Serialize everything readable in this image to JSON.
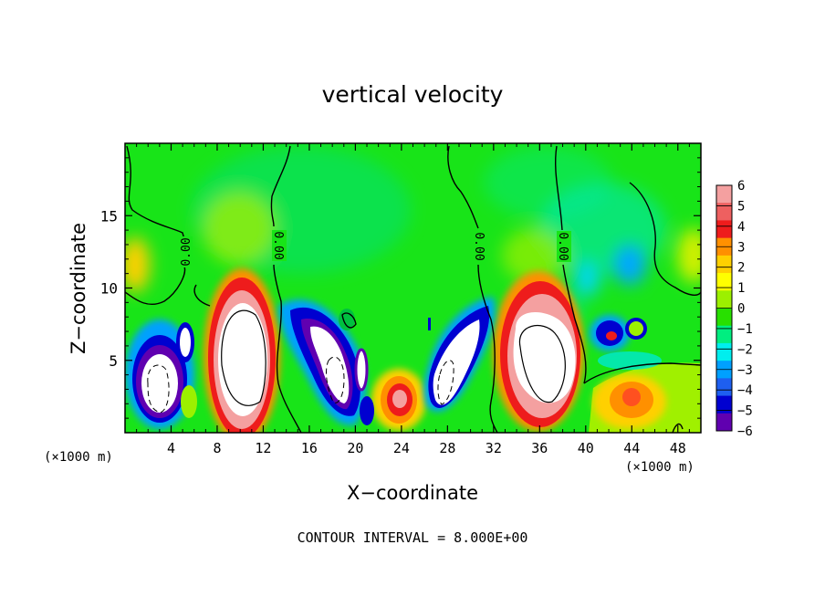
{
  "chart_data": {
    "type": "heatmap",
    "title": "vertical velocity",
    "xlabel": "X−coordinate",
    "ylabel": "Z−coordinate",
    "x_unit_left": "(×1000 m)",
    "x_unit_right": "(×1000 m)",
    "footer": "CONTOUR INTERVAL = 8.000E+00",
    "x_ticks": [
      "4",
      "8",
      "12",
      "16",
      "20",
      "24",
      "28",
      "32",
      "36",
      "40",
      "44",
      "48"
    ],
    "y_ticks": [
      "5",
      "10",
      "15"
    ],
    "xlim": [
      0,
      50
    ],
    "ylim": [
      0,
      20
    ],
    "contour_labels": [
      "0.00",
      "0.00",
      "0.00",
      "0.00"
    ],
    "colorbar": {
      "tick_labels": [
        "6",
        "5",
        "4",
        "3",
        "2",
        "1",
        "0",
        "−1",
        "−2",
        "−3",
        "−4",
        "−5",
        "−6"
      ],
      "range": [
        -6,
        6
      ],
      "colors": [
        "#f4a0a0",
        "#ee6060",
        "#ee1c1c",
        "#ff9000",
        "#ffd000",
        "#ffff00",
        "#9cf000",
        "#28e000",
        "#00ee80",
        "#00eeee",
        "#00a0ff",
        "#1e5ff0",
        "#0000d0",
        "#6000b0"
      ]
    },
    "features": [
      {
        "kind": "updraft",
        "x": 10.5,
        "z": 5.5,
        "peak": 6
      },
      {
        "kind": "updraft",
        "x": 35.5,
        "z": 5.5,
        "peak": 6
      },
      {
        "kind": "updraft",
        "x": 23.5,
        "z": 2.5,
        "peak": 4
      },
      {
        "kind": "updraft",
        "x": 44,
        "z": 2.5,
        "peak": 3
      },
      {
        "kind": "downdraft",
        "x": 2.5,
        "z": 3.5,
        "peak": -6
      },
      {
        "kind": "downdraft",
        "x": 18.5,
        "z": 5,
        "peak": -6
      },
      {
        "kind": "downdraft",
        "x": 28,
        "z": 4,
        "peak": -6
      },
      {
        "kind": "downdraft",
        "x": 42.5,
        "z": 7,
        "peak": -5
      }
    ]
  }
}
